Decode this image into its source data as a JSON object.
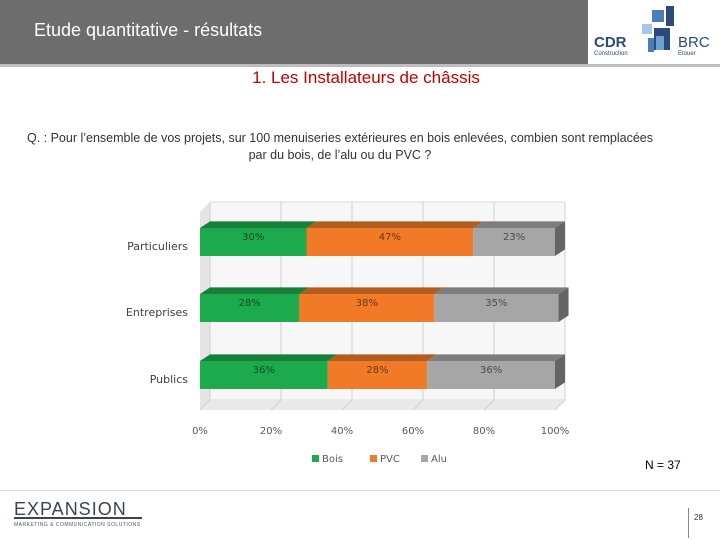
{
  "header": {
    "title": "Etude quantitative - résultats"
  },
  "logos": {
    "cdr": "CDR",
    "cdr_sub": "Construction",
    "brc": "BRC",
    "brc_sub": "Etouer"
  },
  "section_title": "1. Les Installateurs de châssis",
  "question": "Q. : Pour l’ensemble de vos projets, sur 100 menuiseries extérieures en bois enlevées, combien sont remplacées par du bois, de l’alu ou du PVC ?",
  "chart_data": {
    "type": "bar",
    "orientation": "horizontal",
    "stacked": true,
    "percent": true,
    "categories": [
      "Particuliers",
      "Entreprises",
      "Publics"
    ],
    "series": [
      {
        "name": "Bois",
        "values": [
          30,
          28,
          36
        ],
        "labels": [
          "30%",
          "28%",
          "36%"
        ],
        "color": "#1daa4d"
      },
      {
        "name": "PVC",
        "values": [
          47,
          38,
          28
        ],
        "labels": [
          "47%",
          "38%",
          "28%"
        ],
        "color": "#f07a27"
      },
      {
        "name": "Alu",
        "values": [
          23,
          35,
          36
        ],
        "labels": [
          "23%",
          "35%",
          "36%"
        ],
        "color": "#a6a6a6"
      }
    ],
    "xlim": [
      0,
      100
    ],
    "ticks": [
      "0%",
      "20%",
      "40%",
      "60%",
      "80%",
      "100%"
    ],
    "legend_position": "bottom",
    "grid": true
  },
  "sample_size": "N = 37",
  "footer": {
    "brand": "EXPANSION",
    "tagline": "MARKETING & COMMUNICATION SOLUTIONS",
    "page": "28"
  }
}
